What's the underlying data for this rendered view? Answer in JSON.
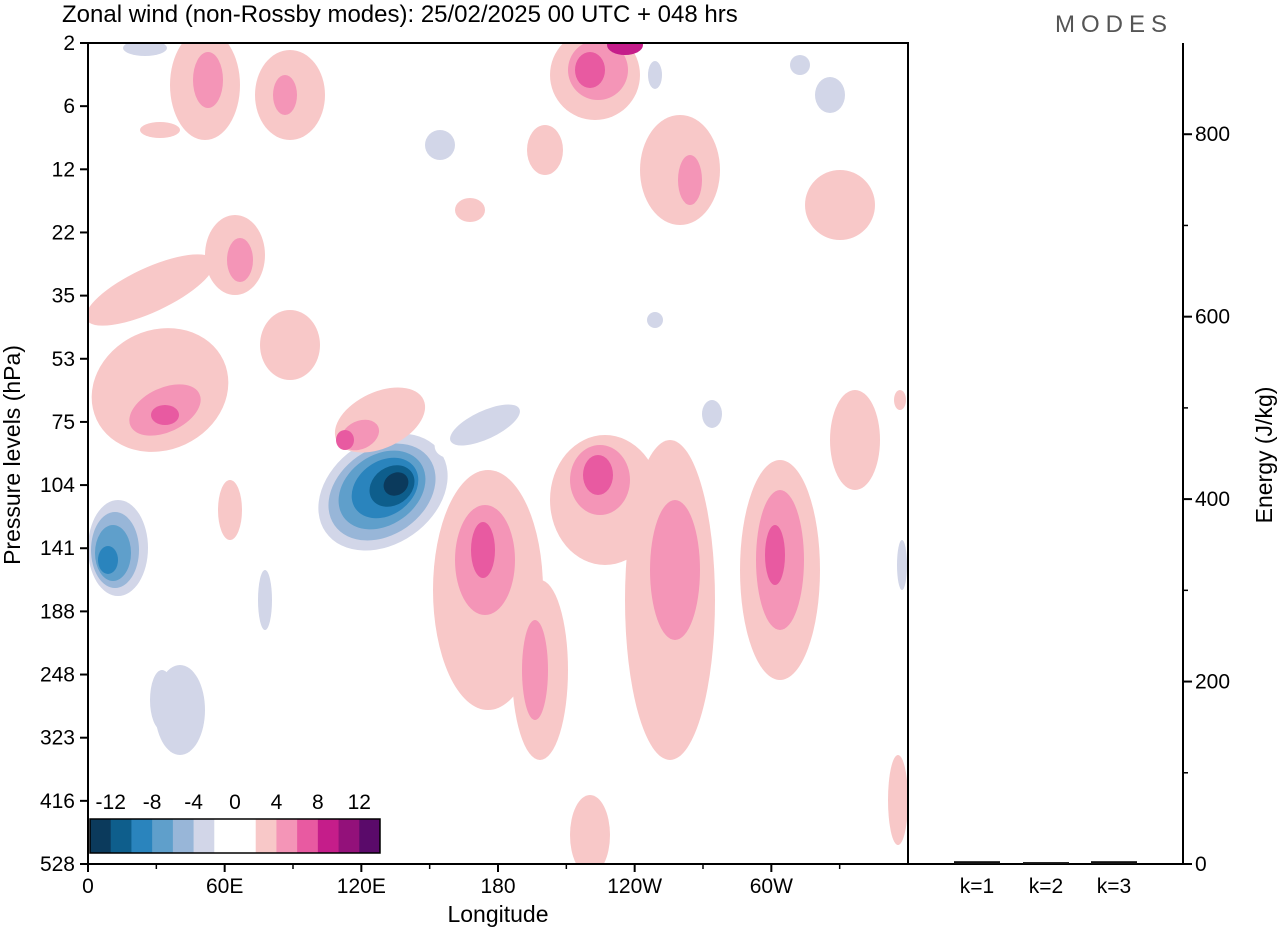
{
  "chart_data": {
    "type": "heatmap",
    "title": "Zonal wind (non-Rossby modes):  25/02/2025  00 UTC  + 048 hrs",
    "logo": "MODES",
    "xlabel": "Longitude",
    "ylabel": "Pressure levels (hPa)",
    "x_ticks": [
      "0",
      "60E",
      "120E",
      "180",
      "120W",
      "60W"
    ],
    "x_tick_degrees_east": [
      0,
      60,
      120,
      180,
      240,
      300
    ],
    "xlim_degrees_east": [
      0,
      360
    ],
    "y_ticks": [
      "2",
      "6",
      "12",
      "22",
      "35",
      "53",
      "75",
      "104",
      "141",
      "188",
      "248",
      "323",
      "416",
      "528"
    ],
    "y_axis_inverted": true,
    "colorbar": {
      "labels": [
        "-12",
        "-8",
        "-4",
        "0",
        "4",
        "8",
        "12"
      ],
      "levels": [
        -14,
        -12,
        -10,
        -8,
        -6,
        -4,
        -2,
        0,
        2,
        4,
        6,
        8,
        10,
        12,
        14
      ],
      "colors": [
        "#0b3a5c",
        "#0e5e8c",
        "#2a84bd",
        "#5f9fcb",
        "#98b6d8",
        "#d2d6e8",
        "#ffffff",
        "#ffffff",
        "#f8c8c8",
        "#f495b7",
        "#e85aa1",
        "#c51d8a",
        "#93117a",
        "#5a0a6a"
      ],
      "legend_position": "bottom-left"
    },
    "features": [
      {
        "name": "strong easterly core",
        "longitude_east": 120,
        "level_hPa": 104,
        "value": -14
      },
      {
        "name": "easterly maximum western edge",
        "longitude_east": 10,
        "level_hPa": 141,
        "value": -10
      },
      {
        "name": "westerly maximum",
        "longitude_east": 175,
        "level_hPa": 141,
        "value": 9
      },
      {
        "name": "westerly maximum",
        "longitude_east": 225,
        "level_hPa": 104,
        "value": 9
      },
      {
        "name": "westerly maximum",
        "longitude_east": 300,
        "level_hPa": 141,
        "value": 9
      },
      {
        "name": "westerly upper maximum",
        "longitude_east": 215,
        "level_hPa": 2,
        "value": 10
      }
    ],
    "energy_panel": {
      "type": "bar",
      "categories": [
        "k=1",
        "k=2",
        "k=3"
      ],
      "values": [
        2,
        1,
        2
      ],
      "ylabel": "Energy (J/kg)",
      "y_ticks": [
        "0",
        "200",
        "400",
        "600",
        "800"
      ],
      "ylim": [
        0,
        900
      ]
    }
  }
}
